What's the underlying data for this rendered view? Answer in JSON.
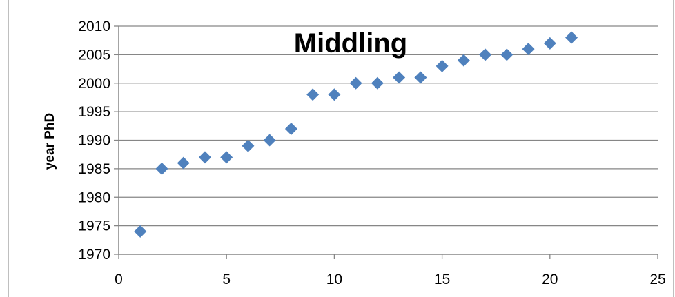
{
  "chart_data": {
    "type": "scatter",
    "title": "Middling",
    "xlabel": "",
    "ylabel": "year PhD",
    "xlim": [
      0,
      25
    ],
    "ylim": [
      1970,
      2010
    ],
    "xticks": [
      0,
      5,
      10,
      15,
      20,
      25
    ],
    "yticks": [
      1970,
      1975,
      1980,
      1985,
      1990,
      1995,
      2000,
      2005,
      2010
    ],
    "grid": "horizontal",
    "legend": "none",
    "marker": "diamond",
    "marker_color": "#4f81bd",
    "series": [
      {
        "x": [
          1,
          2,
          3,
          4,
          5,
          6,
          7,
          8,
          9,
          10,
          11,
          12,
          13,
          14,
          15,
          16,
          17,
          18,
          19,
          20,
          21
        ],
        "y": [
          1974,
          1985,
          1986,
          1987,
          1987,
          1989,
          1990,
          1992,
          1998,
          1998,
          2000,
          2000,
          2001,
          2001,
          2003,
          2004,
          2005,
          2005,
          2006,
          2007,
          2008
        ]
      }
    ]
  }
}
